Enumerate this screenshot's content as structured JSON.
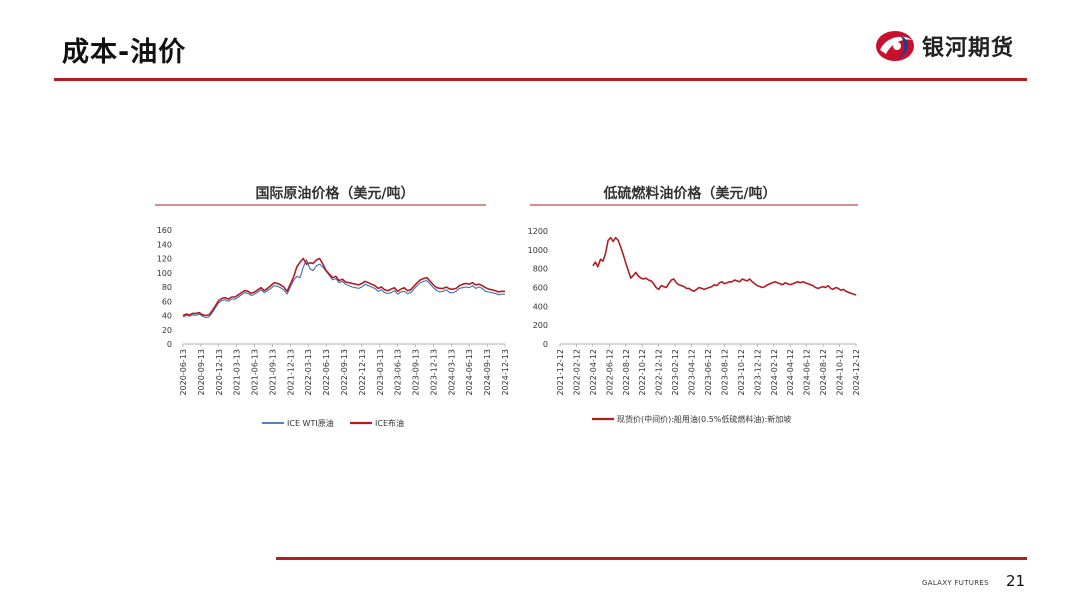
{
  "header": {
    "title": "成本-油价",
    "brand": "银河期货",
    "accent_color": "#b01e23"
  },
  "footer": {
    "brand": "GALAXY FUTURES",
    "page_number": "21"
  },
  "chart_data": [
    {
      "type": "line",
      "title": "国际原油价格（美元/吨）",
      "ylim": [
        0,
        160
      ],
      "yticks": [
        "0",
        "20",
        "40",
        "60",
        "80",
        "100",
        "120",
        "140",
        "160"
      ],
      "x_ticks": [
        "2020-06-13",
        "2020-09-13",
        "2020-12-13",
        "2021-03-13",
        "2021-06-13",
        "2021-09-13",
        "2021-12-13",
        "2022-03-13",
        "2022-06-13",
        "2022-09-13",
        "2022-12-13",
        "2023-03-13",
        "2023-06-13",
        "2023-09-13",
        "2023-12-13",
        "2024-03-13",
        "2024-06-13",
        "2024-09-13",
        "2024-12-13"
      ],
      "legend_position": "bottom",
      "series": [
        {
          "name": "ICE WTI原油",
          "color": "#3f6fb5",
          "values": [
            38,
            40,
            39,
            41,
            40,
            42,
            39,
            37,
            38,
            44,
            51,
            58,
            61,
            62,
            60,
            63,
            63,
            66,
            69,
            72,
            71,
            68,
            70,
            73,
            76,
            72,
            75,
            78,
            82,
            81,
            79,
            76,
            70,
            80,
            89,
            95,
            93,
            108,
            118,
            106,
            103,
            110,
            112,
            108,
            102,
            96,
            90,
            92,
            86,
            88,
            84,
            82,
            80,
            79,
            78,
            80,
            84,
            82,
            80,
            78,
            74,
            76,
            72,
            71,
            72,
            75,
            70,
            73,
            74,
            71,
            72,
            77,
            82,
            86,
            88,
            89,
            84,
            79,
            75,
            73,
            74,
            76,
            72,
            72,
            74,
            78,
            79,
            80,
            79,
            82,
            78,
            80,
            78,
            74,
            73,
            72,
            71,
            69,
            70,
            70
          ]
        },
        {
          "name": "ICE布油",
          "color": "#b01e23",
          "values": [
            40,
            42,
            41,
            43,
            43,
            44,
            41,
            40,
            41,
            47,
            54,
            61,
            64,
            65,
            63,
            66,
            66,
            69,
            72,
            75,
            74,
            71,
            73,
            76,
            79,
            75,
            78,
            82,
            86,
            85,
            83,
            80,
            74,
            84,
            94,
            108,
            115,
            120,
            112,
            114,
            113,
            118,
            120,
            112,
            103,
            98,
            93,
            95,
            89,
            91,
            87,
            86,
            85,
            84,
            83,
            85,
            88,
            86,
            84,
            82,
            78,
            80,
            76,
            75,
            77,
            79,
            74,
            77,
            79,
            75,
            76,
            81,
            86,
            90,
            92,
            93,
            88,
            83,
            79,
            78,
            78,
            80,
            77,
            77,
            78,
            82,
            84,
            85,
            84,
            86,
            83,
            84,
            82,
            79,
            77,
            76,
            75,
            73,
            74,
            74
          ]
        }
      ]
    },
    {
      "type": "line",
      "title": "低硫燃料油价格（美元/吨）",
      "ylim": [
        0,
        1200
      ],
      "yticks": [
        "0",
        "200",
        "400",
        "600",
        "800",
        "1000",
        "1200"
      ],
      "x_ticks": [
        "2021-12-12",
        "2022-02-12",
        "2022-04-12",
        "2022-06-12",
        "2022-08-12",
        "2022-10-12",
        "2022-12-12",
        "2023-02-12",
        "2023-04-12",
        "2023-06-12",
        "2023-08-12",
        "2023-10-12",
        "2023-12-12",
        "2024-02-12",
        "2024-04-12",
        "2024-06-12",
        "2024-08-12",
        "2024-10-12",
        "2024-12-12"
      ],
      "legend_position": "bottom",
      "series": [
        {
          "name": "现货价(中间价):船用油(0.5%低硫燃料油):新加坡",
          "color": "#b01e23",
          "x_start_index": 2,
          "values": [
            830,
            870,
            820,
            900,
            880,
            960,
            1100,
            1130,
            1090,
            1130,
            1100,
            1030,
            950,
            860,
            780,
            700,
            730,
            760,
            720,
            700,
            690,
            700,
            680,
            670,
            640,
            600,
            580,
            620,
            610,
            600,
            640,
            680,
            690,
            650,
            630,
            620,
            610,
            590,
            590,
            570,
            560,
            580,
            600,
            590,
            580,
            590,
            600,
            610,
            630,
            620,
            650,
            660,
            640,
            650,
            660,
            660,
            680,
            670,
            660,
            690,
            680,
            670,
            690,
            660,
            640,
            620,
            610,
            600,
            610,
            630,
            640,
            650,
            660,
            650,
            640,
            630,
            650,
            640,
            630,
            640,
            650,
            660,
            650,
            660,
            650,
            640,
            630,
            620,
            600,
            590,
            600,
            610,
            600,
            620,
            590,
            580,
            600,
            590,
            570,
            580,
            560,
            550,
            540,
            530,
            520
          ]
        }
      ]
    }
  ]
}
